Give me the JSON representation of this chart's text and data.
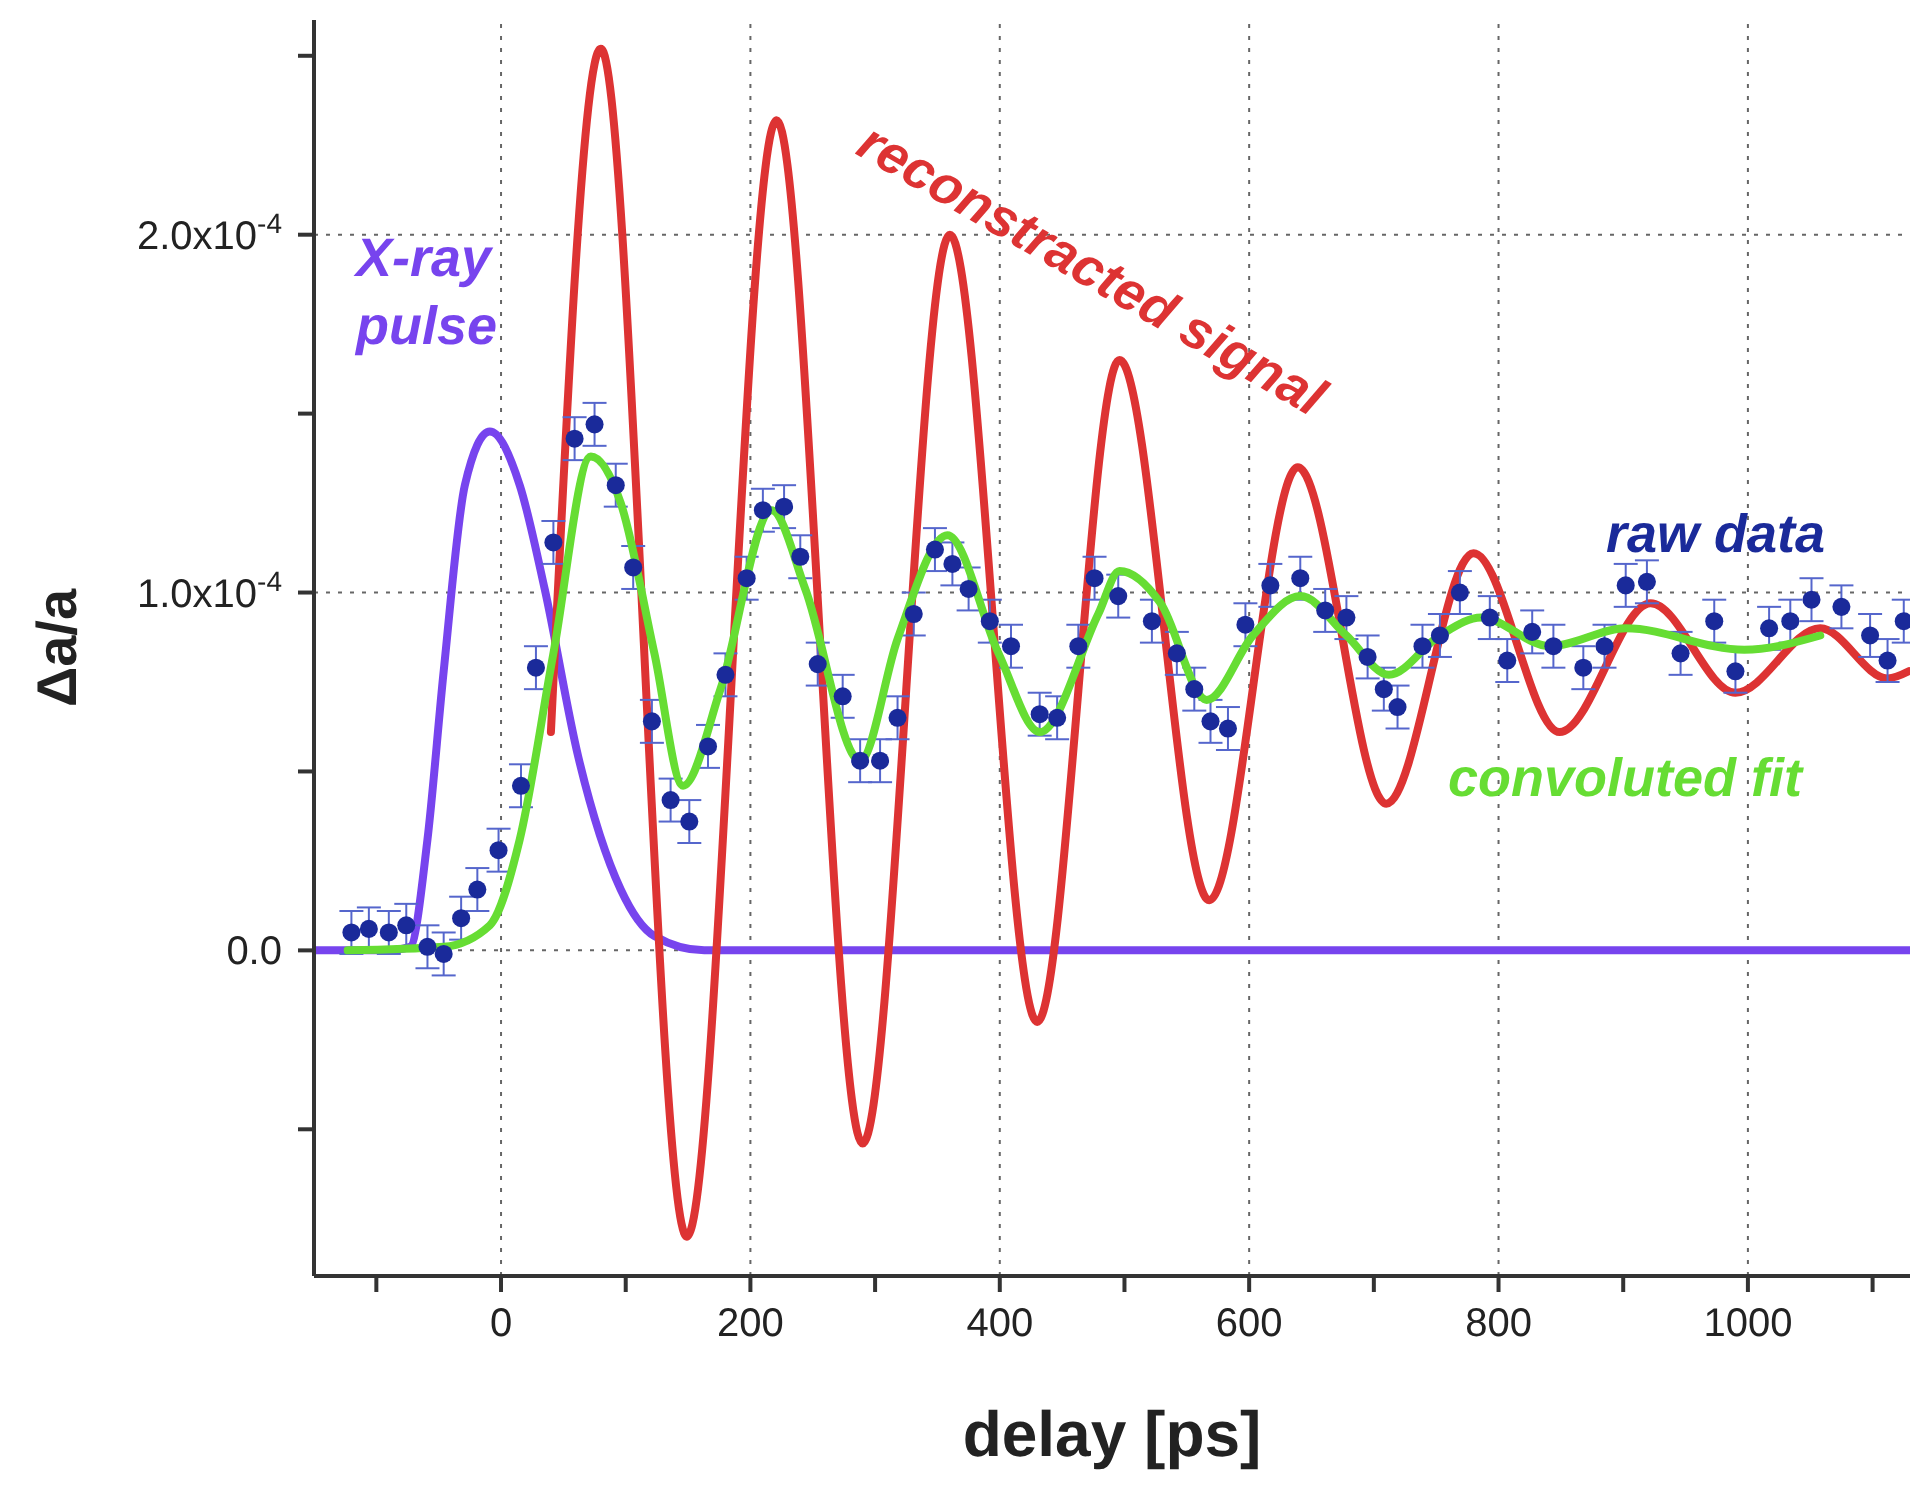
{
  "chart_data": {
    "type": "line",
    "xlabel": "delay [ps]",
    "ylabel": "Δa/a",
    "xlim": [
      -150,
      1130
    ],
    "ylim": [
      -9.1e-05,
      0.00026
    ],
    "xticks": [
      {
        "value": -100,
        "label": null
      },
      0,
      {
        "value": 100,
        "label": null
      },
      200,
      {
        "value": 300,
        "label": null
      },
      400,
      {
        "value": 500,
        "label": null
      },
      600,
      {
        "value": 700,
        "label": null
      },
      800,
      {
        "value": 900,
        "label": null
      },
      1000,
      {
        "value": 1100,
        "label": null
      }
    ],
    "yticks": [
      {
        "value": -5e-05,
        "label": null
      },
      {
        "value": 0,
        "label": "0.0"
      },
      {
        "value": 5e-05,
        "label": null
      },
      {
        "value": 0.0001,
        "label": "1.0x10$^{-4}$"
      },
      {
        "value": 0.00015,
        "label": null
      },
      {
        "value": 0.0002,
        "label": "2.0x10$^{-4}$"
      },
      {
        "value": 0.00025,
        "label": null
      }
    ],
    "grid": true,
    "legend": false,
    "series": [
      {
        "name": "X-ray pulse",
        "color": "#7744ee",
        "marker": "none",
        "x": [
          -150,
          -90,
          -73,
          -59,
          -46,
          -29,
          -9,
          15,
          35,
          62,
          96,
          123,
          163,
          250,
          500,
          800,
          1130
        ],
        "values": [
          0,
          0,
          1e-06,
          3.1e-05,
          7.8e-05,
          0.00013,
          0.000145,
          0.00013,
          0.000101,
          5.4e-05,
          1.7e-05,
          4e-06,
          0,
          0,
          0,
          0,
          0
        ]
      },
      {
        "name": "reconstracted signal",
        "color": "#dd3333",
        "marker": "none",
        "x": [
          40,
          80,
          149,
          221,
          290,
          360,
          430,
          496,
          568,
          639,
          710,
          780,
          849,
          922,
          990,
          1058,
          1112,
          1129
        ],
        "values": [
          6.1e-05,
          0.000252,
          -8e-05,
          0.000232,
          -5.4e-05,
          0.0002,
          -2e-05,
          0.000165,
          1.4e-05,
          0.000135,
          4.1e-05,
          0.000111,
          6.1e-05,
          9.7e-05,
          7.2e-05,
          9e-05,
          7.6e-05,
          7.8e-05
        ]
      },
      {
        "name": "raw data",
        "type": "scatter",
        "color": "#1a2a9a",
        "marker": "circle",
        "x": [
          -120,
          -106,
          -90,
          -76,
          -59,
          -46,
          -32,
          -19,
          -2,
          16,
          28,
          42,
          59,
          75,
          92,
          106,
          121,
          136,
          151,
          166,
          180,
          197,
          210,
          227,
          240,
          254,
          274,
          288,
          304,
          318,
          331,
          348,
          362,
          375,
          392,
          409,
          432,
          446,
          463,
          476,
          495,
          522,
          542,
          556,
          569,
          583,
          597,
          617,
          641,
          661,
          678,
          695,
          708,
          719,
          739,
          753,
          769,
          793,
          807,
          827,
          844,
          868,
          885,
          902,
          919,
          946,
          973,
          990,
          1017,
          1034,
          1051,
          1075,
          1098,
          1112,
          1125
        ],
        "values": [
          5e-06,
          6e-06,
          5e-06,
          7e-06,
          1e-06,
          -1e-06,
          9e-06,
          1.7e-05,
          2.8e-05,
          4.6e-05,
          7.9e-05,
          0.000114,
          0.000143,
          0.000147,
          0.00013,
          0.000107,
          6.4e-05,
          4.2e-05,
          3.6e-05,
          5.7e-05,
          7.7e-05,
          0.000104,
          0.000123,
          0.000124,
          0.00011,
          8e-05,
          7.1e-05,
          5.3e-05,
          5.3e-05,
          6.5e-05,
          9.4e-05,
          0.000112,
          0.000108,
          0.000101,
          9.2e-05,
          8.5e-05,
          6.6e-05,
          6.5e-05,
          8.5e-05,
          0.000104,
          9.9e-05,
          9.2e-05,
          8.3e-05,
          7.3e-05,
          6.4e-05,
          6.2e-05,
          9.1e-05,
          0.000102,
          0.000104,
          9.5e-05,
          9.3e-05,
          8.2e-05,
          7.3e-05,
          6.8e-05,
          8.5e-05,
          8.8e-05,
          0.0001,
          9.3e-05,
          8.1e-05,
          8.9e-05,
          8.5e-05,
          7.9e-05,
          8.5e-05,
          0.000102,
          0.000103,
          8.3e-05,
          9.2e-05,
          7.8e-05,
          9e-05,
          9.2e-05,
          9.8e-05,
          9.6e-05,
          8.8e-05,
          8.1e-05,
          9.2e-05
        ],
        "errors": [
          6e-06,
          6e-06,
          6e-06,
          6e-06,
          6e-06,
          6e-06,
          6e-06,
          6e-06,
          6e-06,
          6e-06,
          6e-06,
          6e-06,
          6e-06,
          6e-06,
          6e-06,
          6e-06,
          6e-06,
          6e-06,
          6e-06,
          6e-06,
          6e-06,
          6e-06,
          6e-06,
          6e-06,
          6e-06,
          6e-06,
          6e-06,
          6e-06,
          6e-06,
          6e-06,
          6e-06,
          6e-06,
          6e-06,
          6e-06,
          6e-06,
          6e-06,
          6e-06,
          6e-06,
          6e-06,
          6e-06,
          6e-06,
          6e-06,
          6e-06,
          6e-06,
          6e-06,
          6e-06,
          6e-06,
          6e-06,
          6e-06,
          6e-06,
          6e-06,
          6e-06,
          6e-06,
          6e-06,
          6e-06,
          6e-06,
          6e-06,
          6e-06,
          6e-06,
          6e-06,
          6e-06,
          6e-06,
          6e-06,
          6e-06,
          6e-06,
          6e-06,
          6e-06,
          6e-06,
          6e-06,
          6e-06,
          6e-06,
          6e-06,
          6e-06,
          6e-06,
          6e-06
        ]
      },
      {
        "name": "convoluted fit",
        "color": "#66dd33",
        "marker": "none",
        "x": [
          -123,
          -46,
          -9,
          15,
          42,
          72,
          96,
          123,
          146,
          176,
          217,
          244,
          288,
          318,
          358,
          399,
          432,
          479,
          496,
          529,
          566,
          603,
          641,
          678,
          712,
          753,
          786,
          841,
          902,
          997,
          1058
        ],
        "values": [
          0,
          1e-06,
          7e-06,
          3.1e-05,
          8.3e-05,
          0.000138,
          0.000125,
          8.3e-05,
          4.6e-05,
          7.3e-05,
          0.000123,
          0.000101,
          5.3e-05,
          8.7e-05,
          0.000116,
          8.3e-05,
          6.1e-05,
          9.4e-05,
          0.000106,
          9.7e-05,
          7e-05,
          8.8e-05,
          9.9e-05,
          8.8e-05,
          7.7e-05,
          8.8e-05,
          9.3e-05,
          8.5e-05,
          9e-05,
          8.4e-05,
          8.8e-05
        ]
      }
    ]
  }
}
